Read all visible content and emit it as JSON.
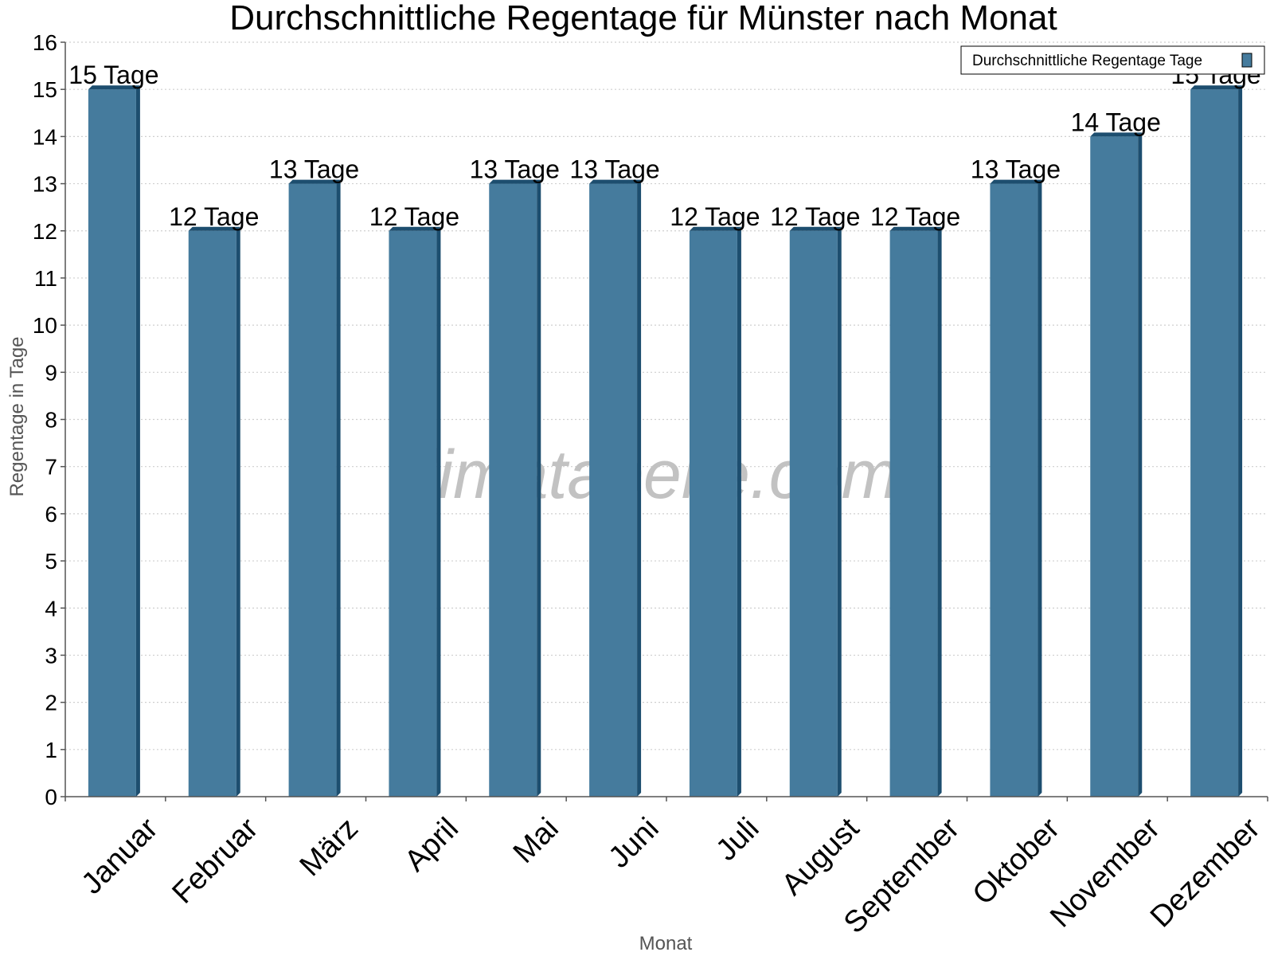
{
  "chart_data": {
    "type": "bar",
    "title": "Durchschnittliche Regentage für Münster nach Monat",
    "xlabel": "Monat",
    "ylabel": "Regentage in Tage",
    "ylim": [
      0,
      16
    ],
    "yticks": [
      0,
      1,
      2,
      3,
      4,
      5,
      6,
      7,
      8,
      9,
      10,
      11,
      12,
      13,
      14,
      15,
      16
    ],
    "grid": "horizontal dotted",
    "legend_position": "top-right",
    "categories": [
      "Januar",
      "Februar",
      "März",
      "April",
      "Mai",
      "Juni",
      "Juli",
      "August",
      "September",
      "Oktober",
      "November",
      "Dezember"
    ],
    "series": [
      {
        "name": "Durchschnittliche Regentage Tage",
        "values": [
          15,
          12,
          13,
          12,
          13,
          13,
          12,
          12,
          12,
          13,
          14,
          15
        ],
        "labels": [
          "15 Tage",
          "12 Tage",
          "13 Tage",
          "12 Tage",
          "13 Tage",
          "13 Tage",
          "12 Tage",
          "12 Tage",
          "12 Tage",
          "13 Tage",
          "14 Tage",
          "15 Tage"
        ],
        "color": "#457b9d",
        "edge_color": "#1d4e6f"
      }
    ],
    "watermark": "klimatabelle.com"
  }
}
